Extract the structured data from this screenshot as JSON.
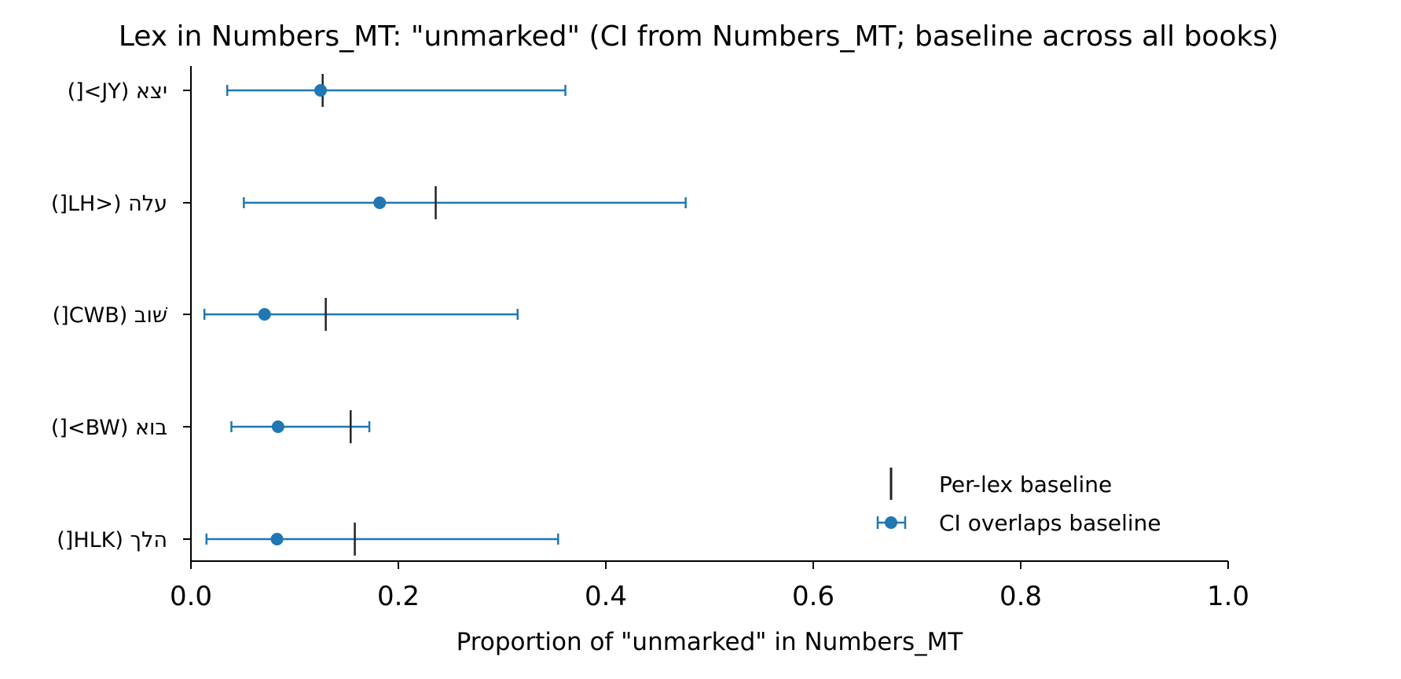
{
  "chart_data": {
    "type": "errorbar",
    "title": "Lex in Numbers_MT: \"unmarked\" (CI from Numbers_MT; baseline across all books)",
    "xlabel": "Proportion of \"unmarked\" in Numbers_MT",
    "ylabel": "",
    "xlim": [
      0.0,
      1.0
    ],
    "xticks": [
      0.0,
      0.2,
      0.4,
      0.6,
      0.8,
      1.0
    ],
    "xtick_labels": [
      "0.0",
      "0.2",
      "0.4",
      "0.6",
      "0.8",
      "1.0"
    ],
    "categories": [
      "יצא (JY>[)",
      "עלה (<LH[)",
      "שׁוב (CWB[)",
      "בוא (BW>[)",
      "הלך (HLK[)"
    ],
    "points": [
      0.125,
      0.182,
      0.071,
      0.084,
      0.083
    ],
    "ci_low": [
      0.035,
      0.051,
      0.013,
      0.039,
      0.015
    ],
    "ci_high": [
      0.361,
      0.477,
      0.315,
      0.172,
      0.354
    ],
    "baselines": [
      0.127,
      0.236,
      0.13,
      0.154,
      0.158
    ],
    "grid": false,
    "legend_position": "lower-right",
    "legend": [
      {
        "name": "Per-lex baseline",
        "marker": "vertical-line",
        "color": "#222222"
      },
      {
        "name": "CI overlaps baseline",
        "marker": "errorbar-dot",
        "color": "#1f77b4"
      }
    ],
    "colors": {
      "ci": "#1f77b4",
      "baseline": "#222222",
      "axis": "#000000"
    }
  }
}
